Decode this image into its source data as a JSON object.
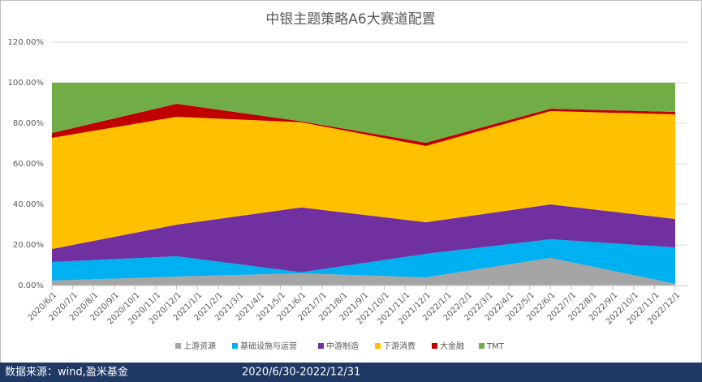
{
  "chart_data": {
    "type": "stacked_area",
    "title": "中银主题策略A6大赛道配置",
    "x": [
      "2020/6/1",
      "2020/12/1",
      "2021/6/1",
      "2021/12/1",
      "2022/6/1",
      "2022/12/1"
    ],
    "xticks": [
      "2020/6/1",
      "2020/7/1",
      "2020/8/1",
      "2020/9/1",
      "2020/10/1",
      "2020/11/1",
      "2020/12/1",
      "2021/1/1",
      "2021/2/1",
      "2021/3/1",
      "2021/4/1",
      "2021/5/1",
      "2021/6/1",
      "2021/7/1",
      "2021/8/1",
      "2021/9/1",
      "2021/10/1",
      "2021/11/1",
      "2021/12/1",
      "2022/1/1",
      "2022/2/1",
      "2022/3/1",
      "2022/4/1",
      "2022/5/1",
      "2022/6/1",
      "2022/7/1",
      "2022/8/1",
      "2022/9/1",
      "2022/10/1",
      "2022/11/1",
      "2022/12/1"
    ],
    "series": [
      {
        "name": "上游资源",
        "color": "#a5a5a5",
        "values": [
          2.4,
          4.4,
          6,
          4,
          13.6,
          0.8
        ]
      },
      {
        "name": "基础设施与运营",
        "color": "#00b0f0",
        "values": [
          9.2,
          10,
          0.5,
          11.6,
          9.2,
          18
        ]
      },
      {
        "name": "中游制造",
        "color": "#7030a0",
        "values": [
          6.4,
          15.6,
          32,
          15.6,
          17.2,
          14
        ]
      },
      {
        "name": "下游消费",
        "color": "#ffc000",
        "values": [
          54.8,
          53.2,
          42,
          37.6,
          46,
          51.6
        ]
      },
      {
        "name": "大金融",
        "color": "#c00000",
        "values": [
          2.4,
          6.4,
          0.5,
          1.6,
          1.2,
          1.2
        ]
      },
      {
        "name": "TMT",
        "color": "#70ad47",
        "values": [
          24.8,
          10.4,
          19,
          29.6,
          12.8,
          14.4
        ]
      }
    ],
    "ylim": [
      0,
      120
    ],
    "yticks": [
      {
        "value": 0,
        "label": "0.00%"
      },
      {
        "value": 20,
        "label": "20.00%"
      },
      {
        "value": 40,
        "label": "40.00%"
      },
      {
        "value": 60,
        "label": "60.00%"
      },
      {
        "value": 80,
        "label": "80.00%"
      },
      {
        "value": 100,
        "label": "100.00%"
      },
      {
        "value": 120,
        "label": "120.00%"
      }
    ],
    "grid": true,
    "legend": "bottom"
  },
  "footer": {
    "source": "数据来源：wind,盈米基金",
    "period": "2020/6/30-2022/12/31"
  }
}
